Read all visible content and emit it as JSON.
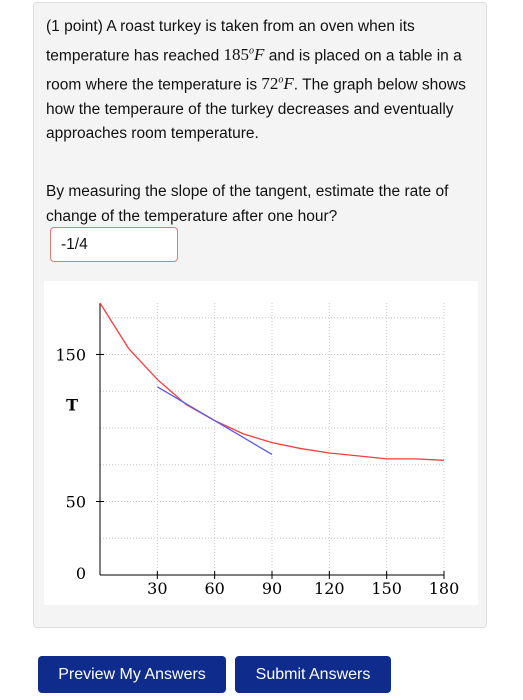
{
  "problem": {
    "points": "(1 point)",
    "text_1": "A roast turkey is taken from an oven when its temperature has reached",
    "oven_temp": "185",
    "deg": "o",
    "unit": "F",
    "text_2": "and is placed on a table in a room where the temperature is",
    "room_temp": "72",
    "text_3": ". The graph below shows how the temperaure of the turkey decreases and eventually approaches room temperature."
  },
  "question": {
    "text": "By measuring the slope of the tangent, estimate the rate of change of the temperature after one hour?"
  },
  "answer": {
    "value": "-1/4"
  },
  "chart_data": {
    "type": "line",
    "xlabel": "",
    "ylabel": "T",
    "xlim": [
      0,
      180
    ],
    "ylim": [
      0,
      185
    ],
    "x_ticks": [
      "30",
      "60",
      "90",
      "120",
      "150",
      "180"
    ],
    "y_ticks": [
      "0",
      "50",
      "150"
    ],
    "grid": true,
    "series": [
      {
        "color": "#ff3b3b",
        "x": [
          0,
          15,
          30,
          45,
          60,
          75,
          90,
          105,
          120,
          135,
          150,
          165,
          180
        ],
        "y": [
          185,
          154,
          133,
          116,
          105,
          96,
          90,
          86,
          83,
          81,
          79,
          79,
          78
        ]
      },
      {
        "color": "#5a5af0",
        "x": [
          30,
          90
        ],
        "y": [
          128,
          82
        ]
      }
    ]
  },
  "buttons": {
    "preview": "Preview My Answers",
    "submit": "Submit Answers"
  }
}
